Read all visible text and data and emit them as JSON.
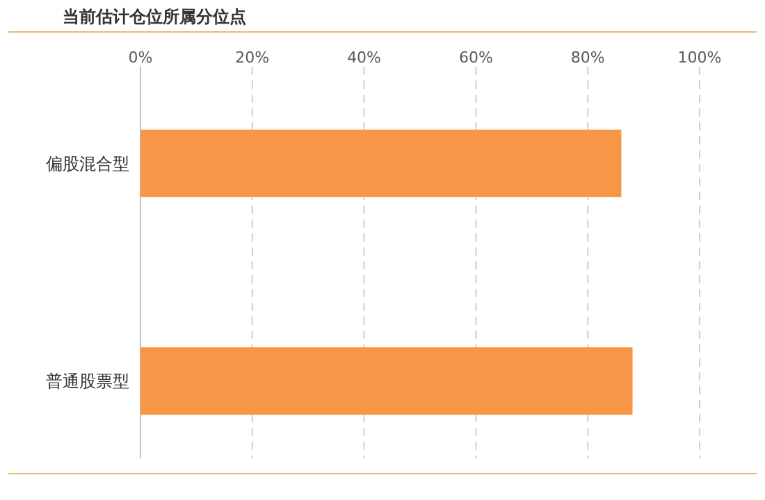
{
  "chart_data": {
    "type": "bar",
    "orientation": "horizontal",
    "title": "当前估计仓位所属分位点",
    "categories": [
      "偏股混合型",
      "普通股票型"
    ],
    "values": [
      86,
      88
    ],
    "color": "#f79646",
    "xlim": [
      0,
      100
    ],
    "xticks": [
      {
        "value": 0,
        "label": "0%"
      },
      {
        "value": 20,
        "label": "20%"
      },
      {
        "value": 40,
        "label": "40%"
      },
      {
        "value": 60,
        "label": "60%"
      },
      {
        "value": 80,
        "label": "80%"
      },
      {
        "value": 100,
        "label": "100%"
      }
    ],
    "grid": "x"
  }
}
